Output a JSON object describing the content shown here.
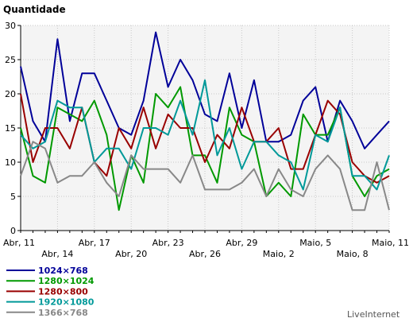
{
  "chart_data": {
    "type": "line",
    "title": "",
    "ylabel": "Quantidade",
    "xlabel": "",
    "ylim": [
      0,
      30
    ],
    "yticks": [
      0,
      5,
      10,
      15,
      20,
      25,
      30
    ],
    "grid": true,
    "legend_position": "bottom-left",
    "x_tick_labels_row1": [
      "Abr, 11",
      "Abr, 17",
      "Abr, 23",
      "Abr, 29",
      "Maio, 5",
      "Maio, 11"
    ],
    "x_tick_labels_row2": [
      "Abr, 14",
      "Abr, 20",
      "Abr, 26",
      "Maio, 2",
      "Maio, 8"
    ],
    "x_tick_labels_row1_idx": [
      0,
      6,
      12,
      18,
      24,
      30
    ],
    "x_tick_labels_row2_idx": [
      3,
      9,
      15,
      21,
      27
    ],
    "n_points": 31,
    "series": [
      {
        "name": "1024×768",
        "color": "#000099",
        "values": [
          24,
          16,
          13,
          28,
          16,
          23,
          23,
          19,
          15,
          14,
          19,
          29,
          21,
          25,
          22,
          17,
          16,
          23,
          15,
          22,
          13,
          13,
          14,
          19,
          21,
          13,
          19,
          16,
          12,
          14,
          16
        ]
      },
      {
        "name": "1280×1024",
        "color": "#009900",
        "values": [
          15,
          8,
          7,
          18,
          17,
          16,
          19,
          14,
          3,
          11,
          7,
          20,
          18,
          21,
          11,
          11,
          7,
          18,
          14,
          13,
          5,
          7,
          5,
          17,
          14,
          14,
          18,
          8,
          5,
          8,
          9
        ]
      },
      {
        "name": "1280×800",
        "color": "#990000",
        "values": [
          20,
          10,
          15,
          15,
          12,
          18,
          10,
          8,
          15,
          12,
          18,
          12,
          17,
          15,
          15,
          10,
          14,
          12,
          18,
          13,
          13,
          15,
          9,
          9,
          14,
          19,
          17,
          10,
          8,
          7,
          8
        ]
      },
      {
        "name": "1920×1080",
        "color": "#009999",
        "values": [
          14,
          12,
          13,
          19,
          18,
          18,
          10,
          12,
          12,
          9,
          15,
          15,
          14,
          19,
          14,
          22,
          11,
          15,
          9,
          13,
          13,
          11,
          10,
          6,
          14,
          13,
          18,
          8,
          8,
          6,
          11
        ]
      },
      {
        "name": "1366×768",
        "color": "#888888",
        "values": [
          8,
          13,
          12,
          7,
          8,
          8,
          10,
          7,
          5,
          11,
          9,
          9,
          9,
          7,
          11,
          6,
          6,
          6,
          7,
          9,
          5,
          9,
          6,
          5,
          9,
          11,
          9,
          3,
          3,
          10,
          3
        ]
      }
    ]
  },
  "legend": [
    {
      "label": "1024×768",
      "color": "#000099"
    },
    {
      "label": "1280×1024",
      "color": "#009900"
    },
    {
      "label": "1280×800",
      "color": "#990000"
    },
    {
      "label": "1920×1080",
      "color": "#009999"
    },
    {
      "label": "1366×768",
      "color": "#888888"
    }
  ],
  "brand": "LiveInternet"
}
